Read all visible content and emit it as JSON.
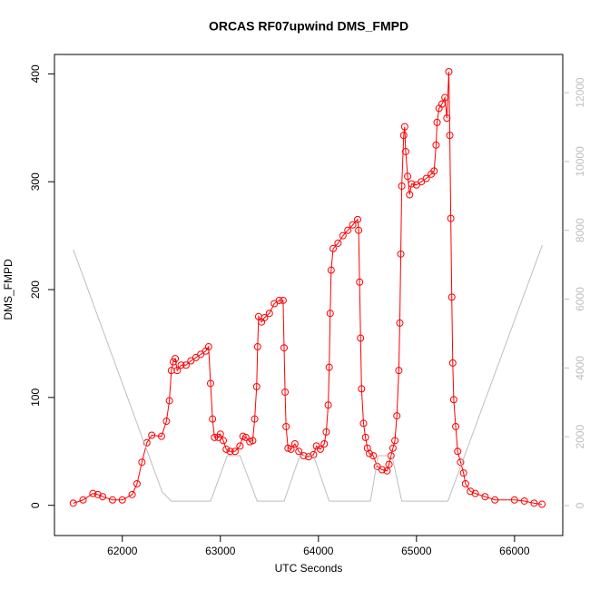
{
  "chart_data": {
    "type": "line",
    "title": "ORCAS RF07upwind DMS_FMPD",
    "xlabel": "UTC Seconds",
    "ylabel": "DMS_FMPD",
    "xlim": [
      61308,
      66492
    ],
    "xticks": [
      62000,
      63000,
      64000,
      65000,
      66000
    ],
    "ylim": [
      -28,
      418
    ],
    "yticks": [
      0,
      100,
      200,
      300,
      400
    ],
    "y2lim": [
      -870,
      13110
    ],
    "y2ticks": [
      0,
      2000,
      4000,
      6000,
      8000,
      10000,
      12000
    ],
    "y2color": "#bebebe",
    "series": [
      {
        "color": "#ff0000",
        "markers": true,
        "x": [
          61500,
          61600,
          61700,
          61750,
          61800,
          61900,
          62000,
          62100,
          62150,
          62200,
          62250,
          62300,
          62400,
          62450,
          62480,
          62500,
          62520,
          62540,
          62560,
          62600,
          62650,
          62700,
          62750,
          62800,
          62850,
          62880,
          62900,
          62920,
          62940,
          62980,
          63000,
          63030,
          63060,
          63100,
          63150,
          63200,
          63230,
          63260,
          63300,
          63330,
          63350,
          63370,
          63380,
          63390,
          63420,
          63450,
          63500,
          63550,
          63600,
          63640,
          63650,
          63660,
          63670,
          63690,
          63720,
          63760,
          63800,
          63850,
          63900,
          63950,
          63980,
          64020,
          64060,
          64080,
          64100,
          64110,
          64120,
          64130,
          64150,
          64200,
          64250,
          64300,
          64350,
          64400,
          64410,
          64420,
          64430,
          64440,
          64460,
          64480,
          64500,
          64520,
          64560,
          64600,
          64650,
          64700,
          64720,
          64740,
          64760,
          64780,
          64800,
          64820,
          64830,
          64840,
          64850,
          64870,
          64880,
          64890,
          64910,
          64930,
          64950,
          65000,
          65050,
          65100,
          65150,
          65180,
          65200,
          65210,
          65230,
          65260,
          65290,
          65310,
          65330,
          65340,
          65350,
          65360,
          65370,
          65380,
          65400,
          65420,
          65450,
          65480,
          65500,
          65550,
          65600,
          65700,
          65800,
          66000,
          66100,
          66200,
          66280
        ],
        "values": [
          2,
          5,
          11,
          10,
          8,
          5,
          5,
          10,
          20,
          40,
          58,
          65,
          64,
          78,
          97,
          125,
          133,
          136,
          125,
          130,
          130,
          134,
          137,
          140,
          143,
          147,
          113,
          80,
          63,
          63,
          66,
          60,
          52,
          50,
          50,
          55,
          64,
          63,
          59,
          60,
          80,
          110,
          147,
          175,
          170,
          174,
          178,
          187,
          190,
          190,
          146,
          105,
          73,
          53,
          52,
          57,
          50,
          46,
          45,
          47,
          55,
          52,
          57,
          68,
          93,
          128,
          178,
          218,
          238,
          243,
          250,
          255,
          260,
          265,
          255,
          207,
          155,
          108,
          76,
          63,
          53,
          48,
          46,
          36,
          33,
          32,
          38,
          46,
          53,
          60,
          83,
          125,
          169,
          233,
          296,
          343,
          351,
          328,
          305,
          288,
          298,
          297,
          300,
          303,
          307,
          310,
          334,
          355,
          368,
          372,
          378,
          359,
          402,
          343,
          266,
          193,
          132,
          98,
          73,
          50,
          40,
          30,
          20,
          13,
          11,
          8,
          5,
          5,
          4,
          2,
          1
        ]
      },
      {
        "color": "#bebebe",
        "axis": "y2",
        "markers": false,
        "x": [
          61500,
          62406,
          62500,
          62900,
          63070,
          63200,
          63375,
          63650,
          63810,
          63950,
          64110,
          64530,
          64610,
          64750,
          64850,
          65320,
          66283
        ],
        "values": [
          7440,
          400,
          130,
          130,
          1450,
          1450,
          130,
          130,
          1450,
          1450,
          130,
          130,
          1450,
          1450,
          130,
          130,
          7570
        ]
      }
    ]
  }
}
